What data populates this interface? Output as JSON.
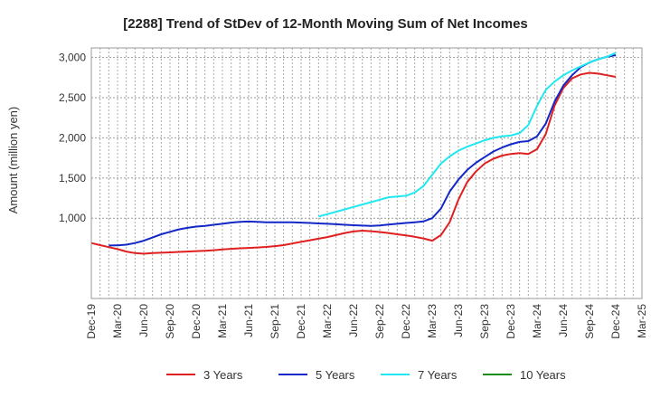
{
  "chart_data": {
    "type": "line",
    "title": "[2288]  Trend of StDev of 12-Month Moving Sum of Net Incomes",
    "ylabel": "Amount (million yen)",
    "xlabel": "",
    "ylim": [
      0,
      3120
    ],
    "yticks": [
      1000,
      1500,
      2000,
      2500,
      3000
    ],
    "ytick_labels": [
      "1,000",
      "1,500",
      "2,000",
      "2,500",
      "3,000"
    ],
    "xtick_labels": [
      "Dec-19",
      "Mar-20",
      "Jun-20",
      "Sep-20",
      "Dec-20",
      "Mar-21",
      "Jun-21",
      "Sep-21",
      "Dec-21",
      "Mar-22",
      "Jun-22",
      "Sep-22",
      "Dec-22",
      "Mar-23",
      "Jun-23",
      "Sep-23",
      "Dec-23",
      "Mar-24",
      "Jun-24",
      "Sep-24",
      "Dec-24",
      "Mar-25"
    ],
    "grid": true,
    "legend_position": "bottom",
    "series": [
      {
        "name": "3 Years",
        "color": "#e02020",
        "x": [
          "Dec-19",
          "Jan-20",
          "Feb-20",
          "Mar-20",
          "Apr-20",
          "May-20",
          "Jun-20",
          "Jul-20",
          "Aug-20",
          "Sep-20",
          "Oct-20",
          "Nov-20",
          "Dec-20",
          "Jan-21",
          "Feb-21",
          "Mar-21",
          "Apr-21",
          "May-21",
          "Jun-21",
          "Jul-21",
          "Aug-21",
          "Sep-21",
          "Oct-21",
          "Nov-21",
          "Dec-21",
          "Jan-22",
          "Feb-22",
          "Mar-22",
          "Apr-22",
          "May-22",
          "Jun-22",
          "Jul-22",
          "Aug-22",
          "Sep-22",
          "Oct-22",
          "Nov-22",
          "Dec-22",
          "Jan-23",
          "Feb-23",
          "Mar-23",
          "Apr-23",
          "May-23",
          "Jun-23",
          "Jul-23",
          "Aug-23",
          "Sep-23",
          "Oct-23",
          "Nov-23",
          "Dec-23",
          "Jan-24",
          "Feb-24",
          "Mar-24",
          "Apr-24",
          "May-24",
          "Jun-24",
          "Jul-24",
          "Aug-24",
          "Sep-24",
          "Oct-24",
          "Nov-24",
          "Dec-24"
        ],
        "values": [
          690,
          665,
          640,
          615,
          585,
          565,
          558,
          565,
          570,
          575,
          580,
          585,
          590,
          595,
          602,
          610,
          618,
          625,
          630,
          635,
          642,
          652,
          665,
          685,
          705,
          725,
          745,
          765,
          790,
          815,
          835,
          845,
          838,
          828,
          815,
          800,
          785,
          768,
          748,
          720,
          790,
          950,
          1230,
          1450,
          1580,
          1680,
          1740,
          1780,
          1800,
          1810,
          1800,
          1860,
          2050,
          2400,
          2620,
          2740,
          2790,
          2810,
          2800,
          2780,
          2760
        ]
      },
      {
        "name": "5 Years",
        "color": "#1428c8",
        "x": [
          "Feb-20",
          "Mar-20",
          "Apr-20",
          "May-20",
          "Jun-20",
          "Jul-20",
          "Aug-20",
          "Sep-20",
          "Oct-20",
          "Nov-20",
          "Dec-20",
          "Jan-21",
          "Feb-21",
          "Mar-21",
          "Apr-21",
          "May-21",
          "Jun-21",
          "Jul-21",
          "Aug-21",
          "Sep-21",
          "Oct-21",
          "Nov-21",
          "Dec-21",
          "Jan-22",
          "Feb-22",
          "Mar-22",
          "Apr-22",
          "May-22",
          "Jun-22",
          "Jul-22",
          "Aug-22",
          "Sep-22",
          "Oct-22",
          "Nov-22",
          "Dec-22",
          "Jan-23",
          "Feb-23",
          "Mar-23",
          "Apr-23",
          "May-23",
          "Jun-23",
          "Jul-23",
          "Aug-23",
          "Sep-23",
          "Oct-23",
          "Nov-23",
          "Dec-23",
          "Jan-24",
          "Feb-24",
          "Mar-24",
          "Apr-24",
          "May-24",
          "Jun-24",
          "Jul-24",
          "Aug-24",
          "Sep-24",
          "Oct-24",
          "Nov-24",
          "Dec-24"
        ],
        "values": [
          660,
          662,
          670,
          690,
          720,
          760,
          800,
          830,
          860,
          880,
          895,
          905,
          918,
          930,
          945,
          955,
          958,
          955,
          950,
          950,
          950,
          948,
          945,
          940,
          935,
          930,
          925,
          918,
          912,
          908,
          905,
          910,
          920,
          930,
          940,
          950,
          960,
          1000,
          1120,
          1330,
          1480,
          1600,
          1690,
          1760,
          1830,
          1880,
          1920,
          1950,
          1960,
          2020,
          2180,
          2450,
          2650,
          2780,
          2880,
          2940,
          2980,
          3010,
          3030
        ]
      },
      {
        "name": "7 Years",
        "color": "#20e8f0",
        "x": [
          "Feb-22",
          "Mar-22",
          "Apr-22",
          "May-22",
          "Jun-22",
          "Jul-22",
          "Aug-22",
          "Sep-22",
          "Oct-22",
          "Nov-22",
          "Dec-22",
          "Jan-23",
          "Feb-23",
          "Mar-23",
          "Apr-23",
          "May-23",
          "Jun-23",
          "Jul-23",
          "Aug-23",
          "Sep-23",
          "Oct-23",
          "Nov-23",
          "Dec-23",
          "Jan-24",
          "Feb-24",
          "Mar-24",
          "Apr-24",
          "May-24",
          "Jun-24",
          "Jul-24",
          "Aug-24",
          "Sep-24",
          "Oct-24",
          "Nov-24",
          "Dec-24"
        ],
        "values": [
          1020,
          1050,
          1080,
          1110,
          1140,
          1170,
          1200,
          1230,
          1260,
          1270,
          1280,
          1320,
          1400,
          1540,
          1680,
          1770,
          1840,
          1890,
          1930,
          1970,
          2000,
          2020,
          2030,
          2060,
          2160,
          2400,
          2600,
          2700,
          2780,
          2840,
          2890,
          2940,
          2980,
          3010,
          3060
        ]
      },
      {
        "name": "10 Years",
        "color": "#1a8c1a",
        "x": [],
        "values": []
      }
    ]
  }
}
